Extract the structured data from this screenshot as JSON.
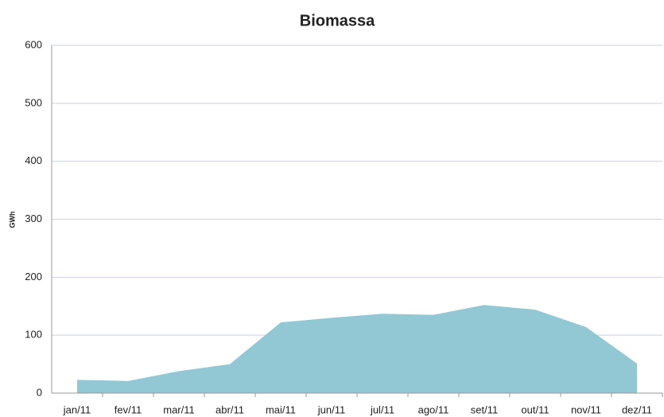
{
  "chart_data": {
    "type": "area",
    "title": "Biomassa",
    "y_label": "GWh",
    "categories": [
      "jan/11",
      "fev/11",
      "mar/11",
      "abr/11",
      "mai/11",
      "jun/11",
      "jul/11",
      "ago/11",
      "set/11",
      "out/11",
      "nov/11",
      "dez/11"
    ],
    "values": [
      23,
      21,
      38,
      50,
      122,
      130,
      137,
      135,
      152,
      144,
      114,
      51
    ],
    "color": "#92c8d4",
    "ylim": [
      0,
      600
    ],
    "yticks": [
      0,
      100,
      200,
      300,
      400,
      500,
      600
    ],
    "grid": true
  }
}
